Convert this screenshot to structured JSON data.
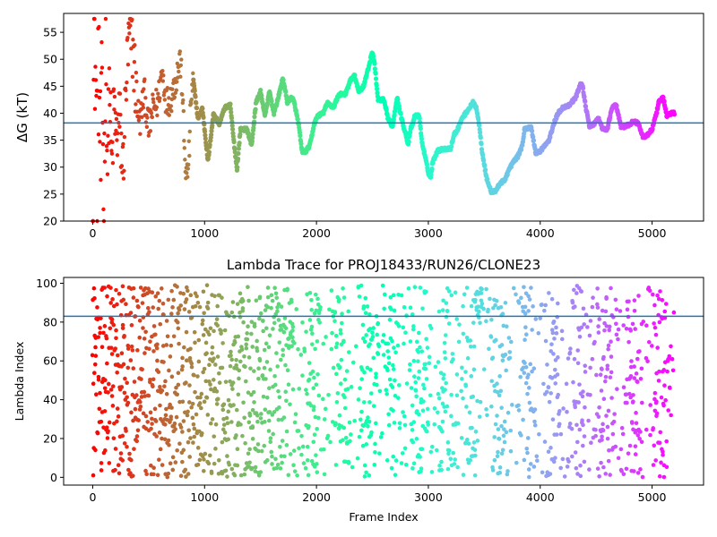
{
  "chart_data": [
    {
      "type": "scatter",
      "title": "",
      "xlabel": "",
      "ylabel": "ΔG (kT)",
      "xlim": [
        -260,
        5460
      ],
      "ylim": [
        20,
        58.5
      ],
      "xticks": [
        0,
        1000,
        2000,
        3000,
        4000,
        5000
      ],
      "yticks": [
        20,
        25,
        30,
        35,
        40,
        45,
        50,
        55
      ],
      "hline": 38.2,
      "colormap": "rainbow",
      "grid": false,
      "trace_knots": [
        [
          0,
          20
        ],
        [
          12,
          57.5
        ],
        [
          25,
          48
        ],
        [
          40,
          32
        ],
        [
          55,
          52
        ],
        [
          70,
          28
        ],
        [
          85,
          45
        ],
        [
          100,
          22
        ],
        [
          115,
          57
        ],
        [
          130,
          30
        ],
        [
          150,
          46
        ],
        [
          170,
          29
        ],
        [
          190,
          42
        ],
        [
          210,
          35
        ],
        [
          240,
          39
        ],
        [
          270,
          29
        ],
        [
          300,
          46
        ],
        [
          330,
          55
        ],
        [
          360,
          52
        ],
        [
          390,
          43
        ],
        [
          420,
          38
        ],
        [
          460,
          44
        ],
        [
          500,
          37
        ],
        [
          540,
          41
        ],
        [
          580,
          42
        ],
        [
          620,
          48
        ],
        [
          660,
          42
        ],
        [
          700,
          43
        ],
        [
          740,
          46
        ],
        [
          780,
          50
        ],
        [
          800,
          45
        ],
        [
          820,
          33
        ],
        [
          840,
          27.5
        ],
        [
          860,
          32
        ],
        [
          880,
          43
        ],
        [
          900,
          46
        ],
        [
          940,
          39
        ],
        [
          980,
          41
        ],
        [
          1030,
          31
        ],
        [
          1080,
          40
        ],
        [
          1130,
          38
        ],
        [
          1180,
          41
        ],
        [
          1230,
          41.5
        ],
        [
          1260,
          35
        ],
        [
          1290,
          29.5
        ],
        [
          1320,
          37
        ],
        [
          1380,
          37
        ],
        [
          1420,
          34
        ],
        [
          1460,
          42
        ],
        [
          1500,
          44
        ],
        [
          1540,
          39.5
        ],
        [
          1580,
          44
        ],
        [
          1620,
          40
        ],
        [
          1660,
          43
        ],
        [
          1700,
          46.5
        ],
        [
          1740,
          42
        ],
        [
          1780,
          43
        ],
        [
          1800,
          42
        ],
        [
          1840,
          38
        ],
        [
          1870,
          33
        ],
        [
          1900,
          32.8
        ],
        [
          1940,
          34
        ],
        [
          1980,
          38
        ],
        [
          2010,
          39.5
        ],
        [
          2060,
          40
        ],
        [
          2100,
          42
        ],
        [
          2150,
          41
        ],
        [
          2200,
          43.5
        ],
        [
          2260,
          43.5
        ],
        [
          2300,
          46
        ],
        [
          2340,
          47
        ],
        [
          2380,
          44
        ],
        [
          2420,
          45
        ],
        [
          2460,
          48
        ],
        [
          2500,
          51.5
        ],
        [
          2520,
          49
        ],
        [
          2550,
          42.5
        ],
        [
          2600,
          42.5
        ],
        [
          2640,
          39
        ],
        [
          2680,
          37.5
        ],
        [
          2720,
          43
        ],
        [
          2760,
          39
        ],
        [
          2800,
          36
        ],
        [
          2820,
          34
        ],
        [
          2840,
          37
        ],
        [
          2860,
          38
        ],
        [
          2880,
          39.5
        ],
        [
          2920,
          39.5
        ],
        [
          2940,
          35
        ],
        [
          2970,
          32
        ],
        [
          3000,
          29
        ],
        [
          3020,
          28
        ],
        [
          3040,
          31
        ],
        [
          3080,
          33
        ],
        [
          3120,
          33.3
        ],
        [
          3200,
          33.5
        ],
        [
          3230,
          36
        ],
        [
          3260,
          37
        ],
        [
          3300,
          39
        ],
        [
          3350,
          40.5
        ],
        [
          3400,
          42
        ],
        [
          3430,
          41
        ],
        [
          3460,
          37
        ],
        [
          3480,
          33
        ],
        [
          3520,
          28
        ],
        [
          3560,
          25.5
        ],
        [
          3600,
          25.5
        ],
        [
          3640,
          27
        ],
        [
          3680,
          27.5
        ],
        [
          3720,
          29.5
        ],
        [
          3760,
          31
        ],
        [
          3800,
          32
        ],
        [
          3840,
          34
        ],
        [
          3860,
          37
        ],
        [
          3880,
          37.3
        ],
        [
          3920,
          37.3
        ],
        [
          3940,
          35
        ],
        [
          3960,
          32.5
        ],
        [
          4000,
          33
        ],
        [
          4040,
          34
        ],
        [
          4080,
          35
        ],
        [
          4120,
          38
        ],
        [
          4160,
          40
        ],
        [
          4200,
          41
        ],
        [
          4260,
          41.5
        ],
        [
          4320,
          43
        ],
        [
          4360,
          45.5
        ],
        [
          4380,
          45
        ],
        [
          4400,
          42
        ],
        [
          4440,
          37.5
        ],
        [
          4480,
          38
        ],
        [
          4520,
          39
        ],
        [
          4560,
          37
        ],
        [
          4600,
          37
        ],
        [
          4640,
          41
        ],
        [
          4680,
          41.5
        ],
        [
          4720,
          37.5
        ],
        [
          4760,
          37.5
        ],
        [
          4800,
          38
        ],
        [
          4840,
          38.5
        ],
        [
          4880,
          38
        ],
        [
          4920,
          35.5
        ],
        [
          4960,
          36
        ],
        [
          5000,
          37
        ],
        [
          5040,
          40
        ],
        [
          5060,
          42
        ],
        [
          5100,
          43
        ],
        [
          5130,
          39.5
        ],
        [
          5170,
          40
        ],
        [
          5200,
          40
        ]
      ]
    },
    {
      "type": "scatter",
      "title": "Lambda Trace for PROJ18433/RUN26/CLONE23",
      "xlabel": "Frame Index",
      "ylabel": "Lambda Index",
      "xlim": [
        -260,
        5460
      ],
      "ylim": [
        -4,
        103
      ],
      "xticks": [
        0,
        1000,
        2000,
        3000,
        4000,
        5000
      ],
      "yticks": [
        0,
        20,
        40,
        60,
        80,
        100
      ],
      "hline": 83,
      "colormap": "rainbow",
      "grid": false,
      "values_range": [
        0,
        99
      ],
      "dense_clusters": [
        {
          "x_from": 3400,
          "x_to": 3560,
          "y_from": 78,
          "y_to": 99
        }
      ]
    }
  ]
}
